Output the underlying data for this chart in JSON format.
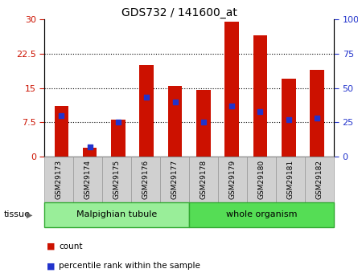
{
  "title": "GDS732 / 141600_at",
  "samples": [
    "GSM29173",
    "GSM29174",
    "GSM29175",
    "GSM29176",
    "GSM29177",
    "GSM29178",
    "GSM29179",
    "GSM29180",
    "GSM29181",
    "GSM29182"
  ],
  "counts": [
    11.0,
    2.0,
    8.0,
    20.0,
    15.5,
    14.5,
    29.5,
    26.5,
    17.0,
    19.0
  ],
  "percentiles": [
    30,
    7,
    25,
    43,
    40,
    25,
    37,
    33,
    27,
    28
  ],
  "bar_color": "#CC1100",
  "dot_color": "#2233CC",
  "ylim_left": [
    0,
    30
  ],
  "ylim_right": [
    0,
    100
  ],
  "yticks_left": [
    0,
    7.5,
    15,
    22.5,
    30
  ],
  "ytick_labels_left": [
    "0",
    "7.5",
    "15",
    "22.5",
    "30"
  ],
  "yticks_right": [
    0,
    25,
    50,
    75,
    100
  ],
  "ytick_labels_right": [
    "0",
    "25",
    "50",
    "75",
    "100%"
  ],
  "groups": [
    {
      "label": "Malpighian tubule",
      "n_samples": 5,
      "color": "#99EE99"
    },
    {
      "label": "whole organism",
      "n_samples": 5,
      "color": "#55DD55"
    }
  ],
  "tissue_label": "tissue",
  "legend_count_label": "count",
  "legend_pct_label": "percentile rank within the sample",
  "bar_width": 0.5,
  "dot_size": 25,
  "bg_color": "#FFFFFF"
}
